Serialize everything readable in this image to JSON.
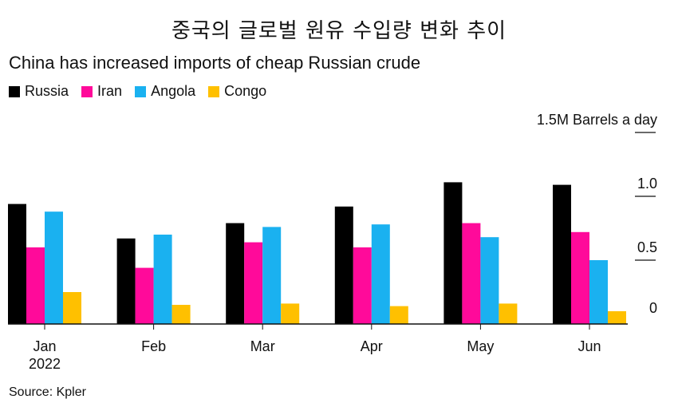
{
  "title": "중국의 글로벌 원유 수입량 변화 추이",
  "subtitle": "China has increased imports of cheap Russian crude",
  "source": "Source: Kpler",
  "legend": [
    {
      "name": "Russia",
      "color": "#000000"
    },
    {
      "name": "Iran",
      "color": "#ff0a9a"
    },
    {
      "name": "Angola",
      "color": "#1ab1f0"
    },
    {
      "name": "Congo",
      "color": "#ffc000"
    }
  ],
  "chart_data": {
    "type": "bar",
    "categories": [
      "Jan\n2022",
      "Feb",
      "Mar",
      "Apr",
      "May",
      "Jun"
    ],
    "series": [
      {
        "name": "Russia",
        "color": "#000000",
        "values": [
          0.94,
          0.67,
          0.79,
          0.92,
          1.11,
          1.09
        ]
      },
      {
        "name": "Iran",
        "color": "#ff0a9a",
        "values": [
          0.6,
          0.44,
          0.64,
          0.6,
          0.79,
          0.72
        ]
      },
      {
        "name": "Angola",
        "color": "#1ab1f0",
        "values": [
          0.88,
          0.7,
          0.76,
          0.78,
          0.68,
          0.5
        ]
      },
      {
        "name": "Congo",
        "color": "#ffc000",
        "values": [
          0.25,
          0.15,
          0.16,
          0.14,
          0.16,
          0.1
        ]
      }
    ],
    "ylabel": "1.5M Barrels a day",
    "yticks": [
      {
        "value": 0,
        "label": "0"
      },
      {
        "value": 0.5,
        "label": "0.5"
      },
      {
        "value": 1.0,
        "label": "1.0"
      },
      {
        "value": 1.5,
        "label": "1.5M Barrels a day"
      }
    ],
    "ylim": [
      0,
      1.5
    ],
    "grid": false,
    "legend_position": "top-left"
  }
}
